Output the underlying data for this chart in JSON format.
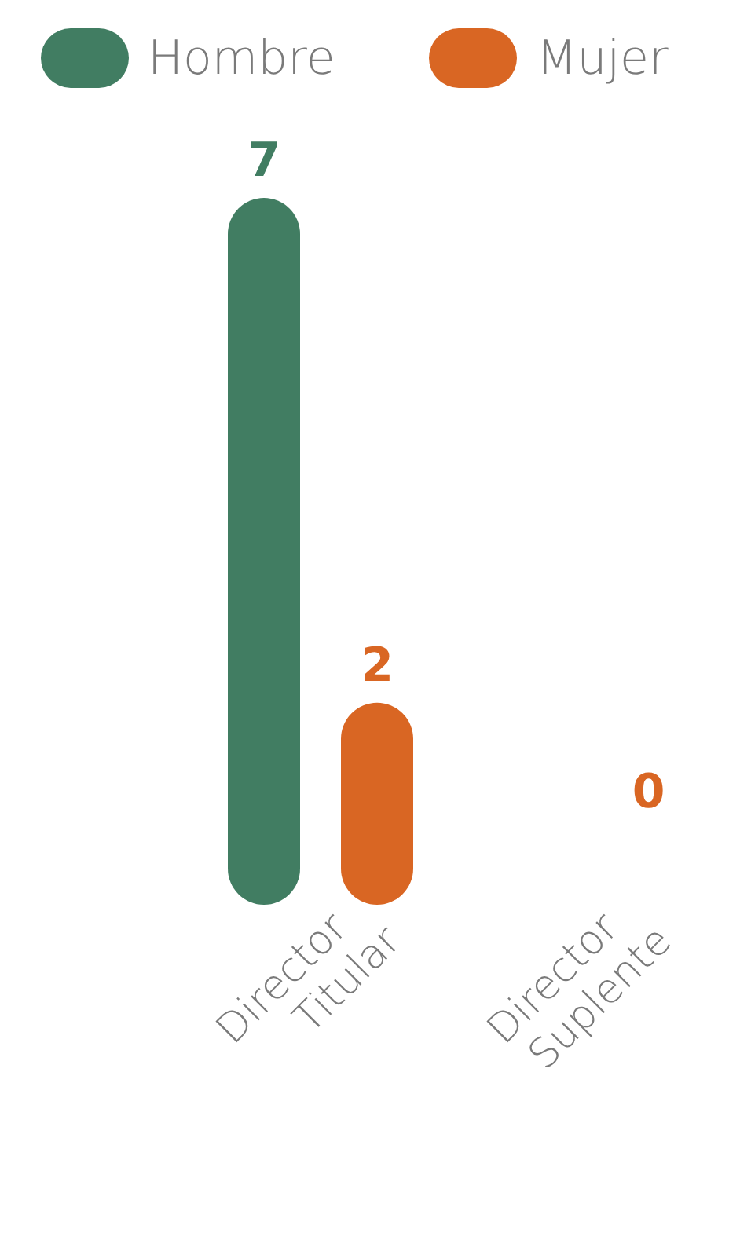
{
  "chart_data": {
    "type": "bar",
    "categories": [
      "Director Titular",
      "Director Suplente"
    ],
    "series": [
      {
        "name": "Hombre",
        "color": "#417d62",
        "values": [
          7,
          0
        ],
        "value_labels": [
          "7",
          null
        ]
      },
      {
        "name": "Mujer",
        "color": "#d96623",
        "values": [
          2,
          0
        ],
        "value_labels": [
          "2",
          "0"
        ]
      }
    ],
    "legend": "top left",
    "grid": false
  }
}
